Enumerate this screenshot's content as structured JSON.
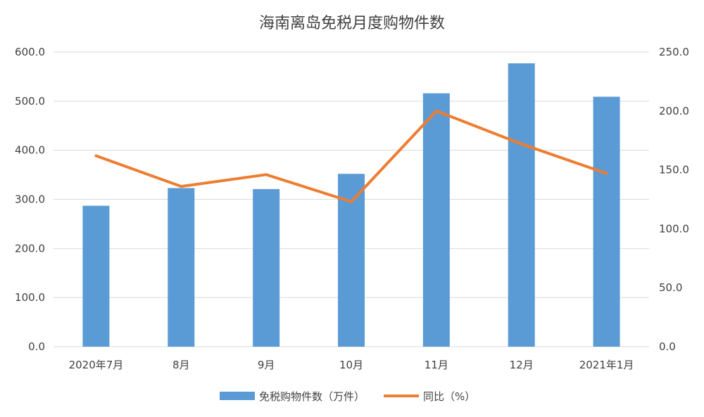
{
  "chart_data": {
    "type": "bar",
    "title": "海南离岛免税月度购物件数",
    "categories": [
      "2020年7月",
      "8月",
      "9月",
      "10月",
      "11月",
      "12月",
      "2021年1月"
    ],
    "series": [
      {
        "name": "免税购物件数（万件）",
        "type": "bar",
        "axis": "left",
        "color": "#5b9bd5",
        "values": [
          287,
          323,
          321,
          352,
          516,
          577,
          509
        ]
      },
      {
        "name": "同比（%）",
        "type": "line",
        "axis": "right",
        "color": "#ed7d31",
        "values": [
          162,
          136,
          146,
          123,
          200,
          172,
          147
        ]
      }
    ],
    "y_left": {
      "ylim": [
        0,
        600
      ],
      "ticks": [
        "0.0",
        "100.0",
        "200.0",
        "300.0",
        "400.0",
        "500.0",
        "600.0"
      ]
    },
    "y_right": {
      "ylim": [
        0,
        250
      ],
      "ticks": [
        "0.0",
        "50.0",
        "100.0",
        "150.0",
        "200.0",
        "250.0"
      ]
    },
    "grid": true,
    "legend": "bottom"
  }
}
